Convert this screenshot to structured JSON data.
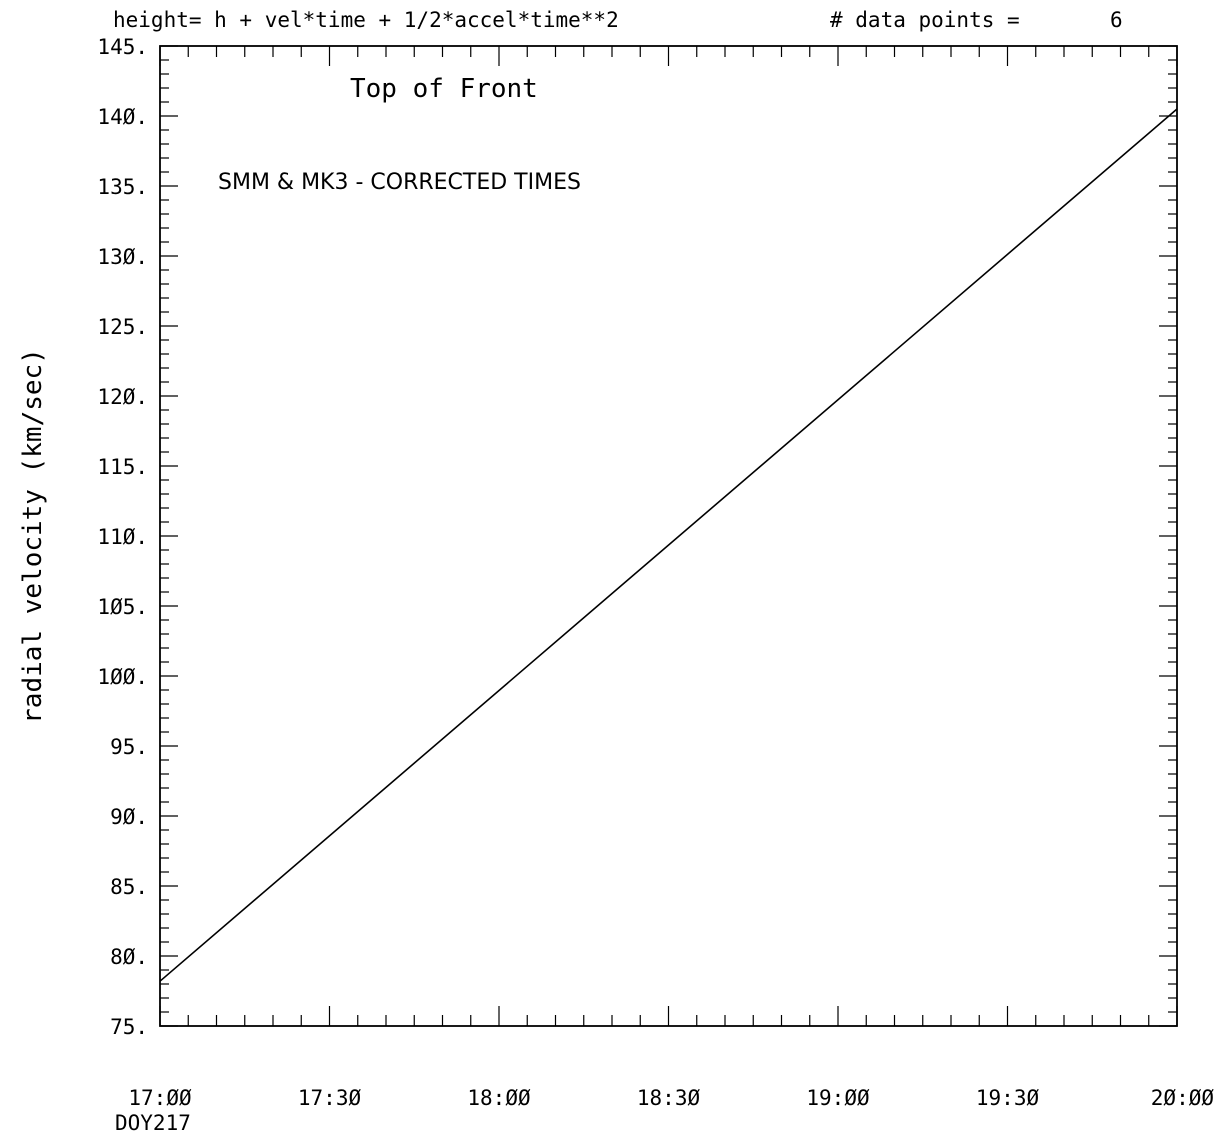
{
  "header": {
    "formula": "height= h + vel*time + 1/2*accel*time**2",
    "points_label": "# data points =",
    "points_count": "6"
  },
  "annotations": {
    "title": "Top of Front",
    "subtitle": "SMM & MK3 - CORRECTED TIMES"
  },
  "chart_data": {
    "type": "line",
    "title": "Top of Front",
    "ylabel": "radial velocity (km/sec)",
    "xlabel": "",
    "x_sublabel": "DOY217",
    "xlim": [
      "17:00",
      "20:00"
    ],
    "ylim": [
      75,
      145
    ],
    "x_ticks": [
      "17:00",
      "17:30",
      "18:00",
      "18:30",
      "19:00",
      "19:30",
      "20:00"
    ],
    "x_tick_labels": [
      "17:ØØ",
      "17:3Ø",
      "18:ØØ",
      "18:3Ø",
      "19:ØØ",
      "19:3Ø",
      "2Ø:ØØ"
    ],
    "y_ticks": [
      75,
      80,
      85,
      90,
      95,
      100,
      105,
      110,
      115,
      120,
      125,
      130,
      135,
      140,
      145
    ],
    "y_tick_labels": [
      "75.",
      "8Ø.",
      "85.",
      "9Ø.",
      "95.",
      "1ØØ.",
      "1Ø5.",
      "11Ø.",
      "115.",
      "12Ø.",
      "125.",
      "13Ø.",
      "135.",
      "14Ø.",
      "145."
    ],
    "series": [
      {
        "x": [
          "17:00",
          "20:00"
        ],
        "y": [
          78.2,
          140.5
        ]
      }
    ],
    "grid": false,
    "colors": {
      "line": "#000000",
      "axes": "#000000"
    }
  }
}
